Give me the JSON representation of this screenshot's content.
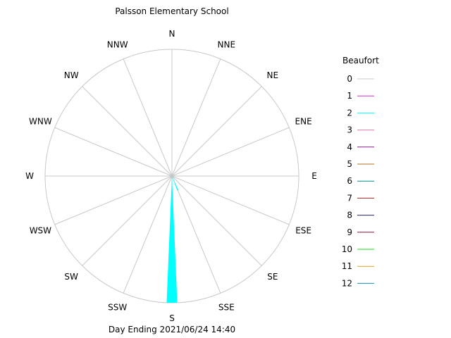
{
  "chart_data": {
    "type": "windrose",
    "title": "Palsson Elementary School",
    "subtitle": "Day Ending 2021/06/24 14:40",
    "directions": [
      "N",
      "NNE",
      "NE",
      "ENE",
      "E",
      "ESE",
      "SE",
      "SSE",
      "S",
      "SSW",
      "SW",
      "WSW",
      "W",
      "WNW",
      "NW",
      "NNW"
    ],
    "rmax": 1.0,
    "grid": true,
    "legend": {
      "title": "Beaufort",
      "position": "right",
      "entries": [
        {
          "label": "0",
          "color": "#c8c8c8"
        },
        {
          "label": "1",
          "color": "#cc33cc"
        },
        {
          "label": "2",
          "color": "#00ffff"
        },
        {
          "label": "3",
          "color": "#e87aa8"
        },
        {
          "label": "4",
          "color": "#8a1a8a"
        },
        {
          "label": "5",
          "color": "#b07020"
        },
        {
          "label": "6",
          "color": "#009090"
        },
        {
          "label": "7",
          "color": "#b02020"
        },
        {
          "label": "8",
          "color": "#20206e"
        },
        {
          "label": "9",
          "color": "#901040"
        },
        {
          "label": "10",
          "color": "#22dd22"
        },
        {
          "label": "11",
          "color": "#e0a020"
        },
        {
          "label": "12",
          "color": "#1090b0"
        }
      ]
    },
    "petals": [
      {
        "direction": "S",
        "beaufort": "2",
        "fraction": 1.0,
        "color": "#00ffff"
      },
      {
        "direction": "SSE",
        "beaufort": "2",
        "fraction": 0.12,
        "color": "#00ffff"
      }
    ]
  }
}
